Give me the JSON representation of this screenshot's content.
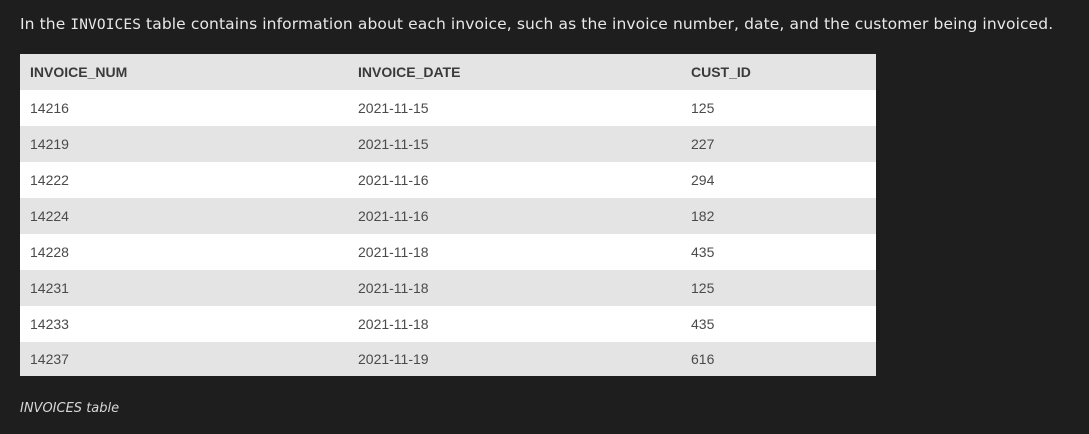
{
  "intro": {
    "before": "In the ",
    "code": "INVOICES",
    "after": " table contains information about each invoice, such as the invoice number, date, and the customer being invoiced."
  },
  "table": {
    "headers": [
      "INVOICE_NUM",
      "INVOICE_DATE",
      "CUST_ID"
    ],
    "rows": [
      [
        "14216",
        "2021-11-15",
        "125"
      ],
      [
        "14219",
        "2021-11-15",
        "227"
      ],
      [
        "14222",
        "2021-11-16",
        "294"
      ],
      [
        "14224",
        "2021-11-16",
        "182"
      ],
      [
        "14228",
        "2021-11-18",
        "435"
      ],
      [
        "14231",
        "2021-11-18",
        "125"
      ],
      [
        "14233",
        "2021-11-18",
        "435"
      ],
      [
        "14237",
        "2021-11-19",
        "616"
      ]
    ]
  },
  "caption": "INVOICES table"
}
